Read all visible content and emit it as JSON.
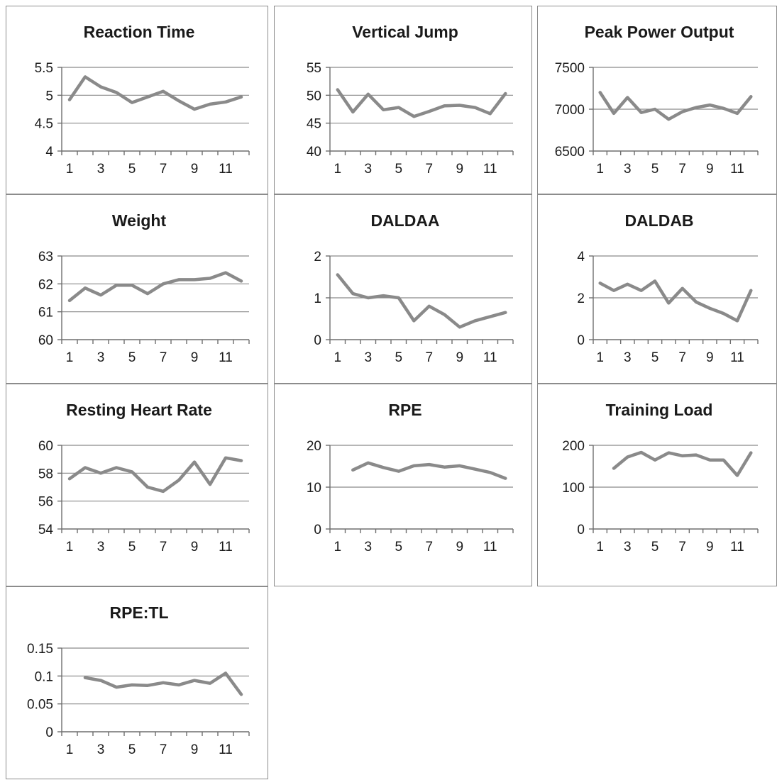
{
  "colors": {
    "line": "#8a8a8a",
    "grid": "#8a8a8a",
    "text": "#1a1a1a"
  },
  "chart_data": [
    {
      "type": "line",
      "title": "Reaction Time",
      "xlabel": "",
      "ylabel": "",
      "x": [
        1,
        2,
        3,
        4,
        5,
        6,
        7,
        8,
        9,
        10,
        11,
        12
      ],
      "xticks": [
        "1",
        "3",
        "5",
        "7",
        "9",
        "11"
      ],
      "yticks": [
        "4",
        "4.5",
        "5",
        "5.5"
      ],
      "ylim": [
        4,
        5.5
      ],
      "grid": true,
      "series": [
        {
          "values": [
            4.92,
            5.33,
            5.15,
            5.05,
            4.87,
            4.97,
            5.07,
            4.9,
            4.75,
            4.84,
            4.88,
            4.97
          ]
        }
      ]
    },
    {
      "type": "line",
      "title": "Vertical Jump",
      "xlabel": "",
      "ylabel": "",
      "x": [
        1,
        2,
        3,
        4,
        5,
        6,
        7,
        8,
        9,
        10,
        11,
        12
      ],
      "xticks": [
        "1",
        "3",
        "5",
        "7",
        "9",
        "11"
      ],
      "yticks": [
        "40",
        "45",
        "50",
        "55"
      ],
      "ylim": [
        40,
        55
      ],
      "grid": true,
      "series": [
        {
          "values": [
            51.0,
            47.0,
            50.2,
            47.4,
            47.8,
            46.2,
            47.1,
            48.1,
            48.2,
            47.8,
            46.7,
            50.3
          ]
        }
      ]
    },
    {
      "type": "line",
      "title": "Peak Power Output",
      "xlabel": "",
      "ylabel": "",
      "x": [
        1,
        2,
        3,
        4,
        5,
        6,
        7,
        8,
        9,
        10,
        11,
        12
      ],
      "xticks": [
        "1",
        "3",
        "5",
        "7",
        "9",
        "11"
      ],
      "yticks": [
        "6500",
        "7000",
        "7500"
      ],
      "ylim": [
        6500,
        7500
      ],
      "grid": true,
      "series": [
        {
          "values": [
            7200,
            6950,
            7140,
            6960,
            7000,
            6880,
            6970,
            7020,
            7050,
            7010,
            6950,
            7150
          ]
        }
      ]
    },
    {
      "type": "line",
      "title": "Weight",
      "xlabel": "",
      "ylabel": "",
      "x": [
        1,
        2,
        3,
        4,
        5,
        6,
        7,
        8,
        9,
        10,
        11,
        12
      ],
      "xticks": [
        "1",
        "3",
        "5",
        "7",
        "9",
        "11"
      ],
      "yticks": [
        "60",
        "61",
        "62",
        "63"
      ],
      "ylim": [
        60,
        63
      ],
      "grid": true,
      "series": [
        {
          "values": [
            61.4,
            61.85,
            61.6,
            61.95,
            61.95,
            61.65,
            62.0,
            62.15,
            62.15,
            62.2,
            62.4,
            62.1
          ]
        }
      ]
    },
    {
      "type": "line",
      "title": "DALDAA",
      "xlabel": "",
      "ylabel": "",
      "x": [
        1,
        2,
        3,
        4,
        5,
        6,
        7,
        8,
        9,
        10,
        11,
        12
      ],
      "xticks": [
        "1",
        "3",
        "5",
        "7",
        "9",
        "11"
      ],
      "yticks": [
        "0",
        "1",
        "2"
      ],
      "ylim": [
        0,
        2
      ],
      "grid": true,
      "series": [
        {
          "values": [
            1.55,
            1.1,
            1.0,
            1.05,
            1.0,
            0.45,
            0.8,
            0.6,
            0.3,
            0.45,
            0.55,
            0.65
          ]
        }
      ]
    },
    {
      "type": "line",
      "title": "DALDAB",
      "xlabel": "",
      "ylabel": "",
      "x": [
        1,
        2,
        3,
        4,
        5,
        6,
        7,
        8,
        9,
        10,
        11,
        12
      ],
      "xticks": [
        "1",
        "3",
        "5",
        "7",
        "9",
        "11"
      ],
      "yticks": [
        "0",
        "2",
        "4"
      ],
      "ylim": [
        0,
        4
      ],
      "grid": true,
      "series": [
        {
          "values": [
            2.7,
            2.35,
            2.65,
            2.35,
            2.8,
            1.75,
            2.45,
            1.8,
            1.5,
            1.25,
            0.9,
            2.35
          ]
        }
      ]
    },
    {
      "type": "line",
      "title": "Resting Heart Rate",
      "xlabel": "",
      "ylabel": "",
      "x": [
        1,
        2,
        3,
        4,
        5,
        6,
        7,
        8,
        9,
        10,
        11,
        12
      ],
      "xticks": [
        "1",
        "3",
        "5",
        "7",
        "9",
        "11"
      ],
      "yticks": [
        "54",
        "56",
        "58",
        "60"
      ],
      "ylim": [
        54,
        60
      ],
      "grid": true,
      "series": [
        {
          "values": [
            57.6,
            58.4,
            58.0,
            58.4,
            58.1,
            57.0,
            56.7,
            57.5,
            58.8,
            57.2,
            59.1,
            58.9
          ]
        }
      ]
    },
    {
      "type": "line",
      "title": "RPE",
      "xlabel": "",
      "ylabel": "",
      "x": [
        1,
        2,
        3,
        4,
        5,
        6,
        7,
        8,
        9,
        10,
        11,
        12
      ],
      "xticks": [
        "1",
        "3",
        "5",
        "7",
        "9",
        "11"
      ],
      "yticks": [
        "0",
        "10",
        "20"
      ],
      "ylim": [
        0,
        20
      ],
      "grid": true,
      "series": [
        {
          "values": [
            null,
            14.1,
            15.8,
            14.7,
            13.8,
            15.1,
            15.4,
            14.8,
            15.1,
            14.3,
            13.5,
            12.1
          ]
        }
      ]
    },
    {
      "type": "line",
      "title": "Training Load",
      "xlabel": "",
      "ylabel": "",
      "x": [
        1,
        2,
        3,
        4,
        5,
        6,
        7,
        8,
        9,
        10,
        11,
        12
      ],
      "xticks": [
        "1",
        "3",
        "5",
        "7",
        "9",
        "11"
      ],
      "yticks": [
        "0",
        "100",
        "200"
      ],
      "ylim": [
        0,
        200
      ],
      "grid": true,
      "series": [
        {
          "values": [
            null,
            145,
            172,
            183,
            165,
            182,
            175,
            177,
            165,
            165,
            128,
            182
          ]
        }
      ]
    },
    {
      "type": "line",
      "title": "RPE:TL",
      "xlabel": "",
      "ylabel": "",
      "x": [
        1,
        2,
        3,
        4,
        5,
        6,
        7,
        8,
        9,
        10,
        11,
        12
      ],
      "xticks": [
        "1",
        "3",
        "5",
        "7",
        "9",
        "11"
      ],
      "yticks": [
        "0",
        "0.05",
        "0.1",
        "0.15"
      ],
      "ylim": [
        0,
        0.15
      ],
      "grid": true,
      "series": [
        {
          "values": [
            null,
            0.097,
            0.092,
            0.08,
            0.084,
            0.083,
            0.088,
            0.084,
            0.092,
            0.087,
            0.105,
            0.067
          ]
        }
      ]
    }
  ]
}
